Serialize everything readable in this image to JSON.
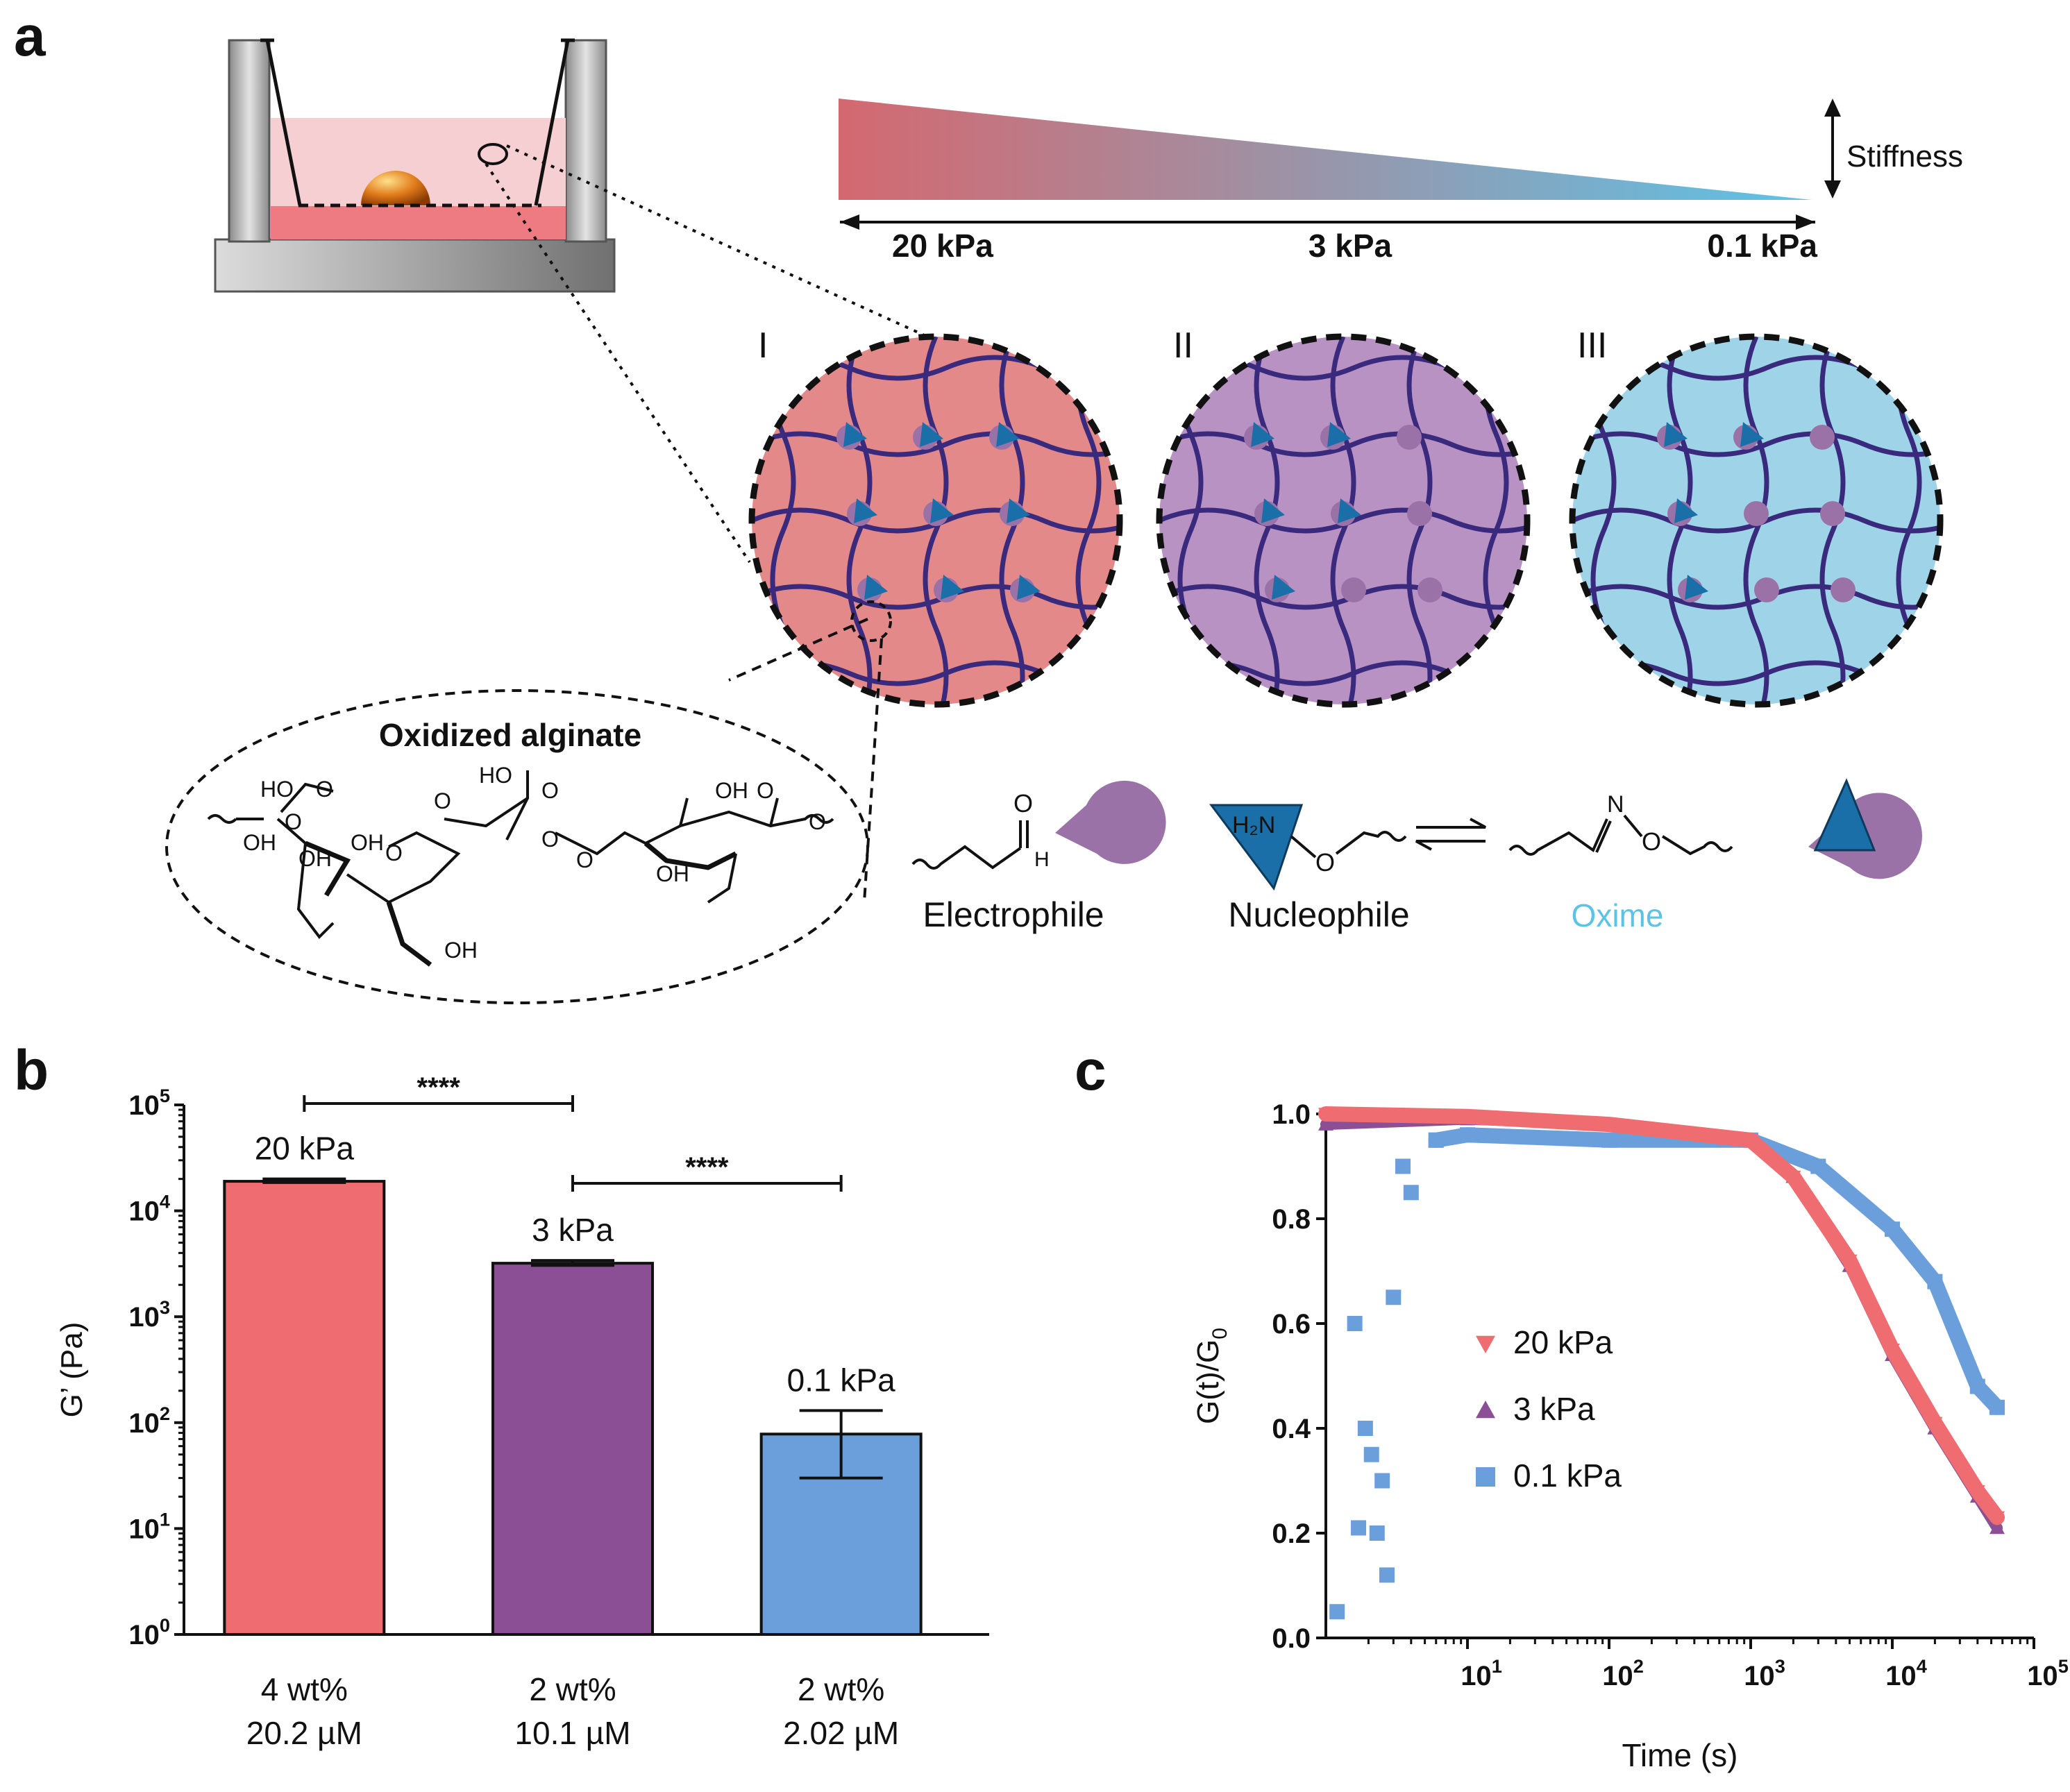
{
  "panel_labels": {
    "a": "a",
    "b": "b",
    "c": "c"
  },
  "panel_a": {
    "stiffness_label": "Stiffness",
    "gradient_ticks": [
      "20 kPa",
      "3 kPa",
      "0.1 kPa"
    ],
    "networks": [
      {
        "label": "I",
        "fill": "#e3898a"
      },
      {
        "label": "II",
        "fill": "#b992c4"
      },
      {
        "label": "III",
        "fill": "#9fd3e8"
      }
    ],
    "alginate_label": "Oxidized alginate",
    "legend": {
      "electrophile": "Electrophile",
      "nucleophile": "Nucleophile",
      "oxime": "Oxime",
      "h2n": "H₂N",
      "o": "O",
      "n": "N",
      "h": "H"
    },
    "chem_labels": [
      "HO",
      "O",
      "OH",
      "O",
      "HO",
      "O",
      "O",
      "O",
      "OH",
      "OH",
      "O",
      "O",
      "OH",
      "O",
      "OH",
      "O",
      "OH"
    ],
    "colors": {
      "stiff": "#d4686f",
      "soft": "#5dc3e6",
      "fiber": "#3a2a7e",
      "nucleophile": "#1b6fa8",
      "electrophile": "#9b72a8"
    }
  },
  "panel_b": {
    "chart_data": {
      "type": "bar",
      "ylabel": "G’ (Pa)",
      "yscale": "log",
      "ylim": [
        1,
        100000
      ],
      "yticks": [
        {
          "v": 1,
          "base": "10",
          "exp": "0"
        },
        {
          "v": 10,
          "base": "10",
          "exp": "1"
        },
        {
          "v": 100,
          "base": "10",
          "exp": "2"
        },
        {
          "v": 1000,
          "base": "10",
          "exp": "3"
        },
        {
          "v": 10000,
          "base": "10",
          "exp": "4"
        },
        {
          "v": 100000,
          "base": "10",
          "exp": "5"
        }
      ],
      "bars": [
        {
          "line1": "4 wt%",
          "line2": "20.2 µM",
          "value": 19000,
          "err_low": 18500,
          "err_high": 20000,
          "label": "20 kPa",
          "color": "#ef6d70"
        },
        {
          "line1": "2 wt%",
          "line2": "10.1 µM",
          "value": 3200,
          "err_low": 3050,
          "err_high": 3400,
          "label": "3 kPa",
          "color": "#8a4f94"
        },
        {
          "line1": "2 wt%",
          "line2": "2.02 µM",
          "value": 78,
          "err_low": 30,
          "err_high": 130,
          "label": "0.1 kPa",
          "color": "#6b9fdb"
        }
      ],
      "significance": [
        {
          "from": 0,
          "to": 1,
          "label": "****"
        },
        {
          "from": 1,
          "to": 2,
          "label": "****"
        }
      ]
    }
  },
  "panel_c": {
    "chart_data": {
      "type": "scatter",
      "xlabel": "Time (s)",
      "ylabel_main": "G(t)/G",
      "ylabel_sub": "0",
      "xscale": "log",
      "xlim": [
        1,
        100000
      ],
      "ylim": [
        0,
        1
      ],
      "yticks": [
        "0.0",
        "0.2",
        "0.4",
        "0.6",
        "0.8",
        "1.0"
      ],
      "xticks": [
        {
          "base": "10",
          "exp": "1"
        },
        {
          "base": "10",
          "exp": "2"
        },
        {
          "base": "10",
          "exp": "3"
        },
        {
          "base": "10",
          "exp": "4"
        },
        {
          "base": "10",
          "exp": "5"
        }
      ],
      "series": [
        {
          "name": "20 kPa",
          "marker": "triangle-down",
          "color": "#ef6d70",
          "x": [
            1,
            10,
            100,
            1000,
            2000,
            5000,
            10000,
            20000,
            40000,
            55000
          ],
          "y": [
            1.0,
            0.995,
            0.98,
            0.95,
            0.88,
            0.72,
            0.55,
            0.41,
            0.28,
            0.23
          ]
        },
        {
          "name": "3 kPa",
          "marker": "triangle-up",
          "color": "#8a4f94",
          "x": [
            1,
            10,
            100,
            1000,
            2000,
            5000,
            10000,
            20000,
            40000,
            55000
          ],
          "y": [
            0.98,
            0.99,
            0.98,
            0.95,
            0.88,
            0.71,
            0.54,
            0.4,
            0.27,
            0.21
          ]
        },
        {
          "name": "0.1 kPa",
          "marker": "square",
          "color": "#6b9fdb",
          "x": [
            1.2,
            1.6,
            1.7,
            1.9,
            2.1,
            2.3,
            2.5,
            2.7,
            3,
            3.5,
            4,
            6,
            10,
            100,
            1000,
            3000,
            10000,
            20000,
            40000,
            55000
          ],
          "y": [
            0.05,
            0.6,
            0.21,
            0.4,
            0.35,
            0.2,
            0.3,
            0.12,
            0.65,
            0.9,
            0.85,
            0.95,
            0.96,
            0.95,
            0.95,
            0.9,
            0.78,
            0.68,
            0.48,
            0.44
          ]
        }
      ]
    }
  }
}
